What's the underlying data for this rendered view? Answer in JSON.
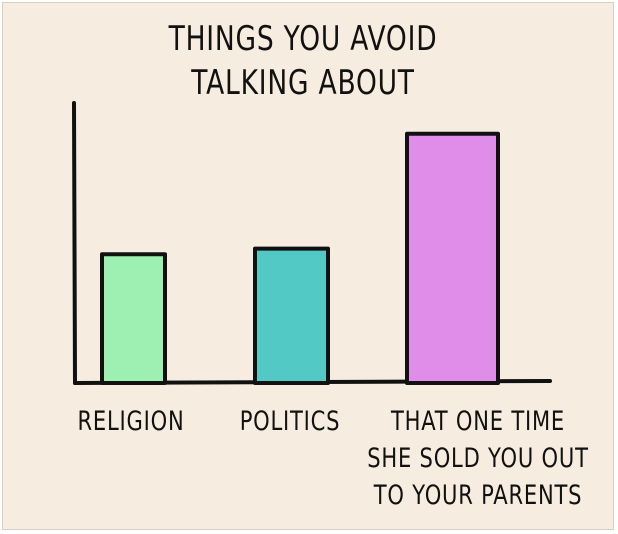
{
  "chart_data": {
    "type": "bar",
    "title": "THINGS YOU AVOID\nTALKING ABOUT",
    "categories": [
      "RELIGION",
      "POLITICS",
      "THAT ONE TIME\nSHE SOLD YOU OUT\nTO YOUR PARENTS"
    ],
    "values": [
      46,
      48,
      89
    ],
    "colors": [
      "#9ef0b2",
      "#52c9c5",
      "#e08de9"
    ],
    "ylim": [
      0,
      100
    ]
  }
}
